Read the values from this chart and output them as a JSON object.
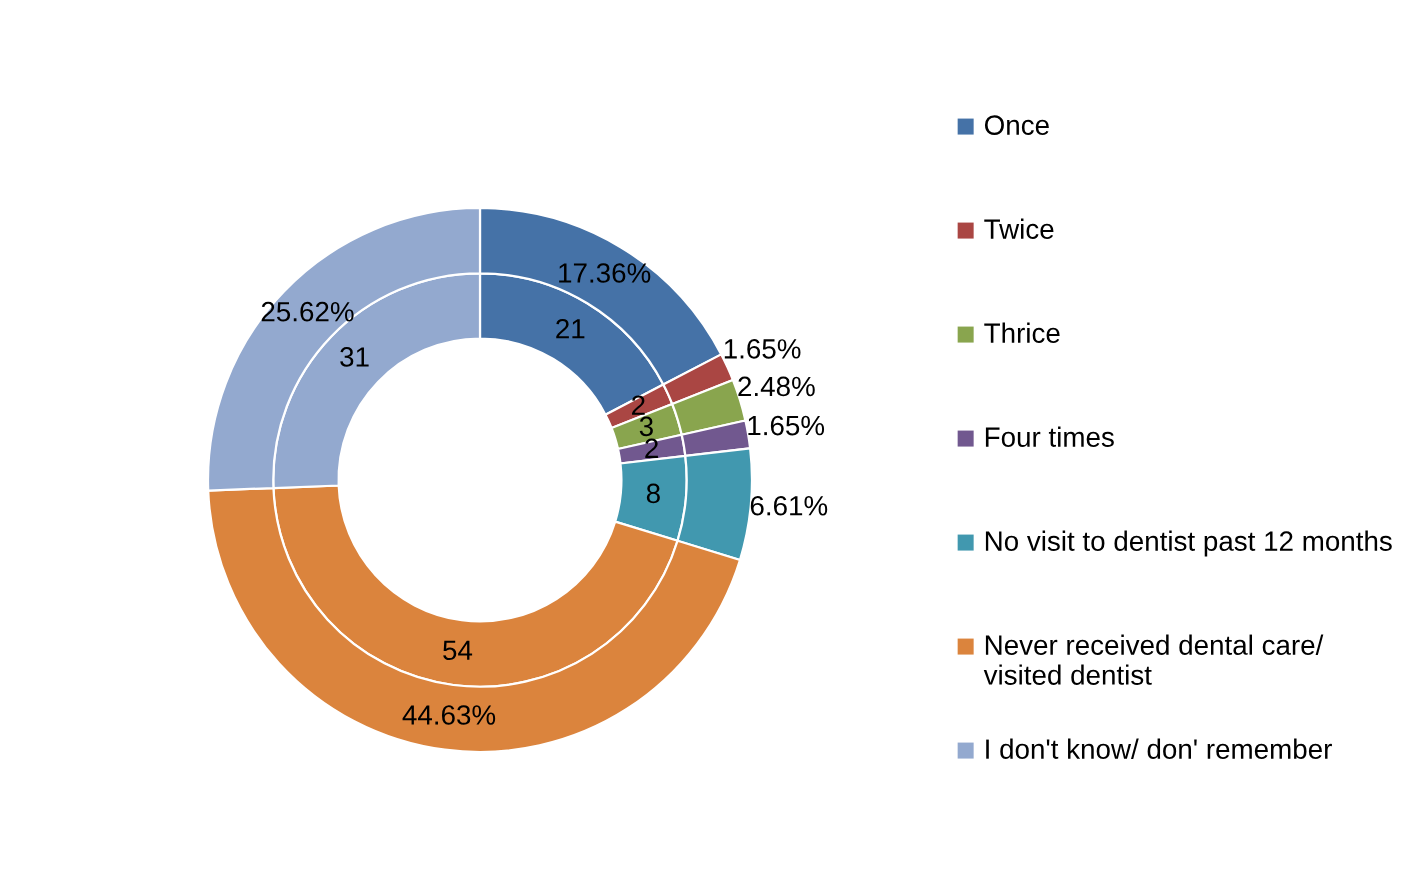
{
  "chart_data": {
    "type": "donut",
    "categories": [
      "Once",
      "Twice",
      "Thrice",
      "Four times",
      "No visit to dentist past 12 months",
      "Never received dental care/ visited dentist",
      "I don't know/ don' remember"
    ],
    "colors": [
      "#4572a7",
      "#aa4643",
      "#89a54e",
      "#71588f",
      "#4198af",
      "#db843d",
      "#93a9cf"
    ],
    "series": [
      {
        "values": [
          21,
          2,
          3,
          2,
          8,
          54,
          31
        ],
        "value_labels": [
          "21",
          "2",
          "3",
          "2",
          "8",
          "54",
          "31"
        ]
      },
      {
        "values": [
          17.36,
          1.65,
          2.48,
          1.65,
          6.61,
          44.63,
          25.62
        ],
        "value_labels": [
          "17.36%",
          "1.65%",
          "2.48%",
          "1.65%",
          "6.61%",
          "44.63%",
          "25.62%"
        ]
      }
    ],
    "legend": "right"
  }
}
